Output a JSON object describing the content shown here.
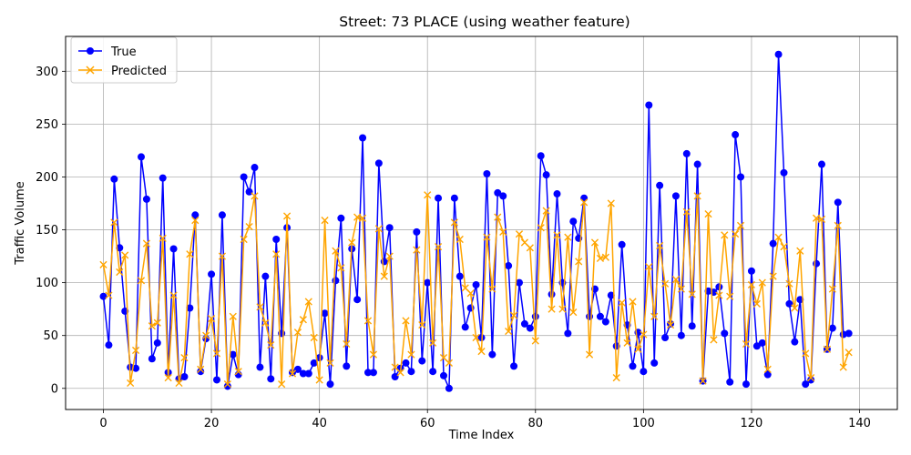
{
  "chart_data": {
    "type": "line",
    "title": "Street: 73 PLACE (using weather feature)",
    "xlabel": "Time Index",
    "ylabel": "Traffic Volume",
    "xlim": [
      -7,
      147
    ],
    "ylim": [
      -20,
      333
    ],
    "x_ticks": [
      0,
      20,
      40,
      60,
      80,
      100,
      120,
      140
    ],
    "y_ticks": [
      0,
      50,
      100,
      150,
      200,
      250,
      300
    ],
    "grid": true,
    "legend_position": "top-left",
    "series": [
      {
        "name": "True",
        "color": "#0000ff",
        "marker": "circle",
        "values": [
          87,
          41,
          198,
          133,
          73,
          20,
          19,
          219,
          179,
          28,
          43,
          199,
          15,
          132,
          9,
          11,
          76,
          164,
          16,
          47,
          108,
          8,
          164,
          2,
          32,
          13,
          200,
          186,
          209,
          20,
          106,
          9,
          141,
          52,
          152,
          15,
          18,
          14,
          14,
          24,
          29,
          71,
          4,
          102,
          161,
          21,
          132,
          84,
          237,
          15,
          15,
          213,
          120,
          152,
          11,
          19,
          24,
          16,
          148,
          26,
          100,
          16,
          180,
          12,
          0,
          180,
          106,
          58,
          76,
          98,
          48,
          203,
          32,
          185,
          182,
          116,
          21,
          100,
          61,
          57,
          68,
          220,
          202,
          89,
          184,
          100,
          52,
          158,
          142,
          180,
          68,
          94,
          68,
          63,
          88,
          40,
          136,
          60,
          21,
          53,
          16,
          268,
          24,
          192,
          48,
          61,
          182,
          50,
          222,
          59,
          212,
          7,
          92,
          91,
          96,
          52,
          6,
          240,
          200,
          4,
          111,
          40,
          43,
          13,
          137,
          316,
          204,
          80,
          44,
          84,
          4,
          8,
          118,
          212,
          37,
          57,
          176,
          51,
          52
        ]
      },
      {
        "name": "Predicted",
        "color": "#ffa500",
        "marker": "x",
        "values": [
          117,
          88,
          157,
          110,
          126,
          5,
          36,
          102,
          137,
          59,
          62,
          142,
          10,
          88,
          5,
          29,
          127,
          159,
          18,
          50,
          66,
          33,
          125,
          4,
          68,
          16,
          141,
          153,
          182,
          77,
          62,
          41,
          127,
          4,
          163,
          14,
          53,
          65,
          82,
          48,
          8,
          159,
          24,
          130,
          114,
          42,
          138,
          162,
          161,
          64,
          32,
          151,
          106,
          125,
          20,
          15,
          64,
          32,
          131,
          60,
          183,
          43,
          134,
          29,
          24,
          157,
          141,
          95,
          90,
          48,
          35,
          143,
          94,
          162,
          148,
          54,
          69,
          146,
          138,
          133,
          45,
          152,
          168,
          75,
          145,
          75,
          143,
          72,
          120,
          176,
          32,
          138,
          123,
          124,
          175,
          10,
          81,
          43,
          82,
          37,
          51,
          115,
          68,
          135,
          99,
          60,
          103,
          94,
          167,
          89,
          182,
          7,
          165,
          46,
          88,
          145,
          87,
          146,
          154,
          42,
          98,
          80,
          100,
          18,
          106,
          143,
          134,
          99,
          76,
          130,
          33,
          10,
          161,
          160,
          37,
          94,
          154,
          20,
          34
        ]
      }
    ]
  }
}
